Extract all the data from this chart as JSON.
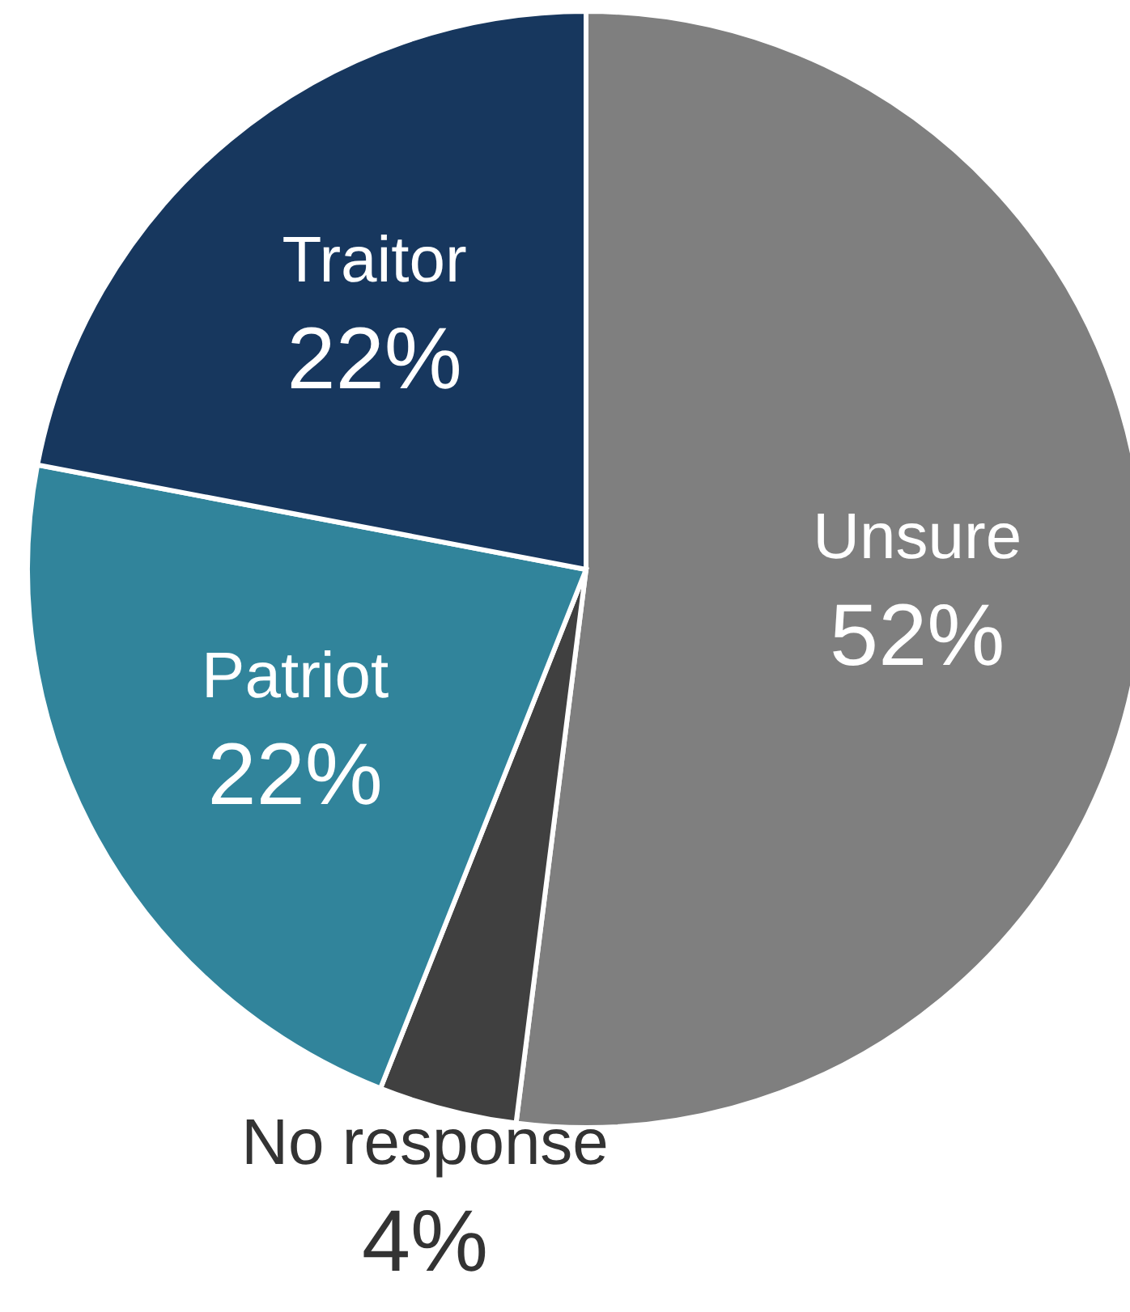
{
  "chart_data": {
    "type": "pie",
    "categories": [
      "Unsure",
      "No response",
      "Patriot",
      "Traitor"
    ],
    "values": [
      52,
      4,
      22,
      22
    ],
    "colors": [
      "#7f7f7f",
      "#404040",
      "#31849b",
      "#17375e"
    ],
    "value_labels": [
      "52%",
      "4%",
      "22%",
      "22%"
    ]
  }
}
